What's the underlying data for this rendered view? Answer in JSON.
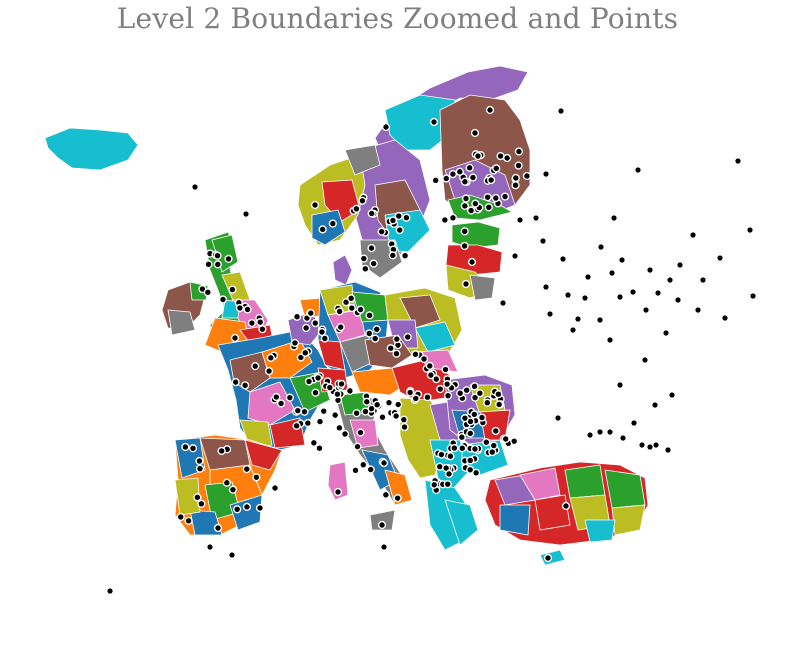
{
  "title": "Level 2 Boundaries Zoomed and Points",
  "palette": [
    "#1f77b4",
    "#ff7f0e",
    "#2ca02c",
    "#d62728",
    "#9467bd",
    "#8c564b",
    "#e377c2",
    "#7f7f7f",
    "#bcbd22",
    "#17becf"
  ],
  "point_color": "#000000"
}
